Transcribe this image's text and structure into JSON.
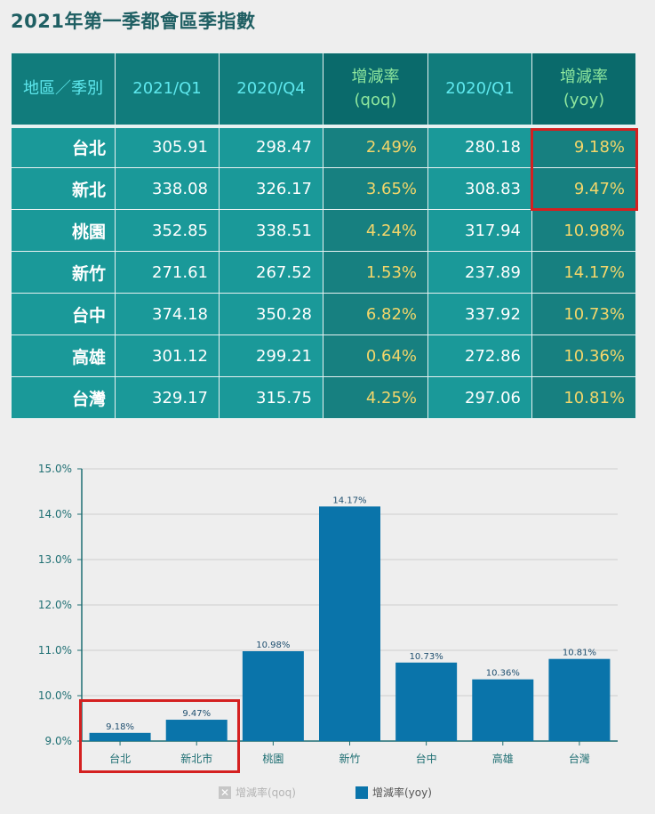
{
  "title": "2021年第一季都會區季指數",
  "table": {
    "headers": [
      {
        "line1": "地區／季別",
        "line2": ""
      },
      {
        "line1": "2021/Q1",
        "line2": ""
      },
      {
        "line1": "2020/Q4",
        "line2": ""
      },
      {
        "line1": "增減率",
        "line2": "(qoq)"
      },
      {
        "line1": "2020/Q1",
        "line2": ""
      },
      {
        "line1": "增減率",
        "line2": "(yoy)"
      }
    ],
    "rows": [
      {
        "region": "台北",
        "q1_2021": "305.91",
        "q4_2020": "298.47",
        "qoq": "2.49%",
        "q1_2020": "280.18",
        "yoy": "9.18%"
      },
      {
        "region": "新北",
        "q1_2021": "338.08",
        "q4_2020": "326.17",
        "qoq": "3.65%",
        "q1_2020": "308.83",
        "yoy": "9.47%"
      },
      {
        "region": "桃園",
        "q1_2021": "352.85",
        "q4_2020": "338.51",
        "qoq": "4.24%",
        "q1_2020": "317.94",
        "yoy": "10.98%"
      },
      {
        "region": "新竹",
        "q1_2021": "271.61",
        "q4_2020": "267.52",
        "qoq": "1.53%",
        "q1_2020": "237.89",
        "yoy": "14.17%"
      },
      {
        "region": "台中",
        "q1_2021": "374.18",
        "q4_2020": "350.28",
        "qoq": "6.82%",
        "q1_2020": "337.92",
        "yoy": "10.73%"
      },
      {
        "region": "高雄",
        "q1_2021": "301.12",
        "q4_2020": "299.21",
        "qoq": "0.64%",
        "q1_2020": "272.86",
        "yoy": "10.36%"
      },
      {
        "region": "台灣",
        "q1_2021": "329.17",
        "q4_2020": "315.75",
        "qoq": "4.25%",
        "q1_2020": "297.06",
        "yoy": "10.81%"
      }
    ]
  },
  "chart_data": {
    "type": "bar",
    "categories": [
      "台北",
      "新北市",
      "桃園",
      "新竹",
      "台中",
      "高雄",
      "台灣"
    ],
    "series": [
      {
        "name": "增減率(yoy)",
        "values": [
          9.18,
          9.47,
          10.98,
          14.17,
          10.73,
          10.36,
          10.81
        ],
        "labels": [
          "9.18%",
          "9.47%",
          "10.98%",
          "14.17%",
          "10.73%",
          "10.36%",
          "10.81%"
        ],
        "color": "#0a74aa"
      }
    ],
    "hidden_series": [
      {
        "name": "增減率(qoq)"
      }
    ],
    "ylim": [
      9.0,
      15.0
    ],
    "yticks": [
      9.0,
      10.0,
      11.0,
      12.0,
      13.0,
      14.0,
      15.0
    ],
    "ytick_labels": [
      "9.0%",
      "10.0%",
      "11.0%",
      "12.0%",
      "13.0%",
      "14.0%",
      "15.0%"
    ],
    "grid": true,
    "legend": [
      {
        "label": "增減率(qoq)",
        "state": "hidden"
      },
      {
        "label": "增減率(yoy)",
        "state": "shown"
      }
    ],
    "legend_position": "bottom"
  },
  "colors": {
    "title": "#1f5f63",
    "header_text": "#5ee8ee",
    "header_rate_text": "#8fe79e",
    "cell_bg": "#1a9999",
    "rate_text": "#f3d66a",
    "bar": "#0a74aa",
    "highlight": "#d42020"
  }
}
